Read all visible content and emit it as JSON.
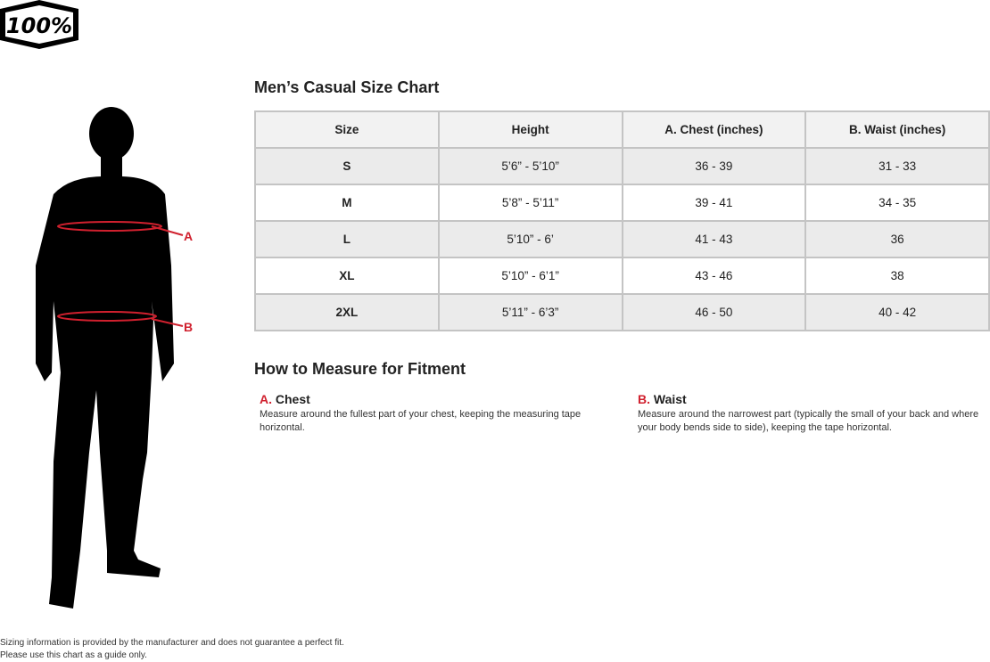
{
  "brand": {
    "logo_text": "100%"
  },
  "size_chart": {
    "title": "Men’s Casual Size Chart",
    "headers": [
      "Size",
      "Height",
      "A. Chest (inches)",
      "B. Waist (inches)"
    ],
    "rows": [
      [
        "S",
        "5’6” - 5’10”",
        "36 - 39",
        "31 - 33"
      ],
      [
        "M",
        "5’8” - 5’11”",
        "39 - 41",
        "34 - 35"
      ],
      [
        "L",
        "5’10” - 6’",
        "41 - 43",
        "36"
      ],
      [
        "XL",
        "5’10” - 6’1”",
        "43 - 46",
        "38"
      ],
      [
        "2XL",
        "5’11” - 6’3”",
        "46 - 50",
        "40 - 42"
      ]
    ]
  },
  "figure": {
    "label_a": "A",
    "label_b": "B",
    "accent": "#d0202e"
  },
  "how_to": {
    "title": "How to Measure for Fitment",
    "chest": {
      "letter": "A.",
      "name": "Chest",
      "text": "Measure around the fullest part of your chest, keeping the measuring tape horizontal."
    },
    "waist": {
      "letter": "B.",
      "name": "Waist",
      "text": "Measure around the narrowest part (typically the small of your back and where your body bends side to side), keeping the tape horizontal."
    }
  },
  "footer": {
    "line1": "Sizing information is provided by the manufacturer and does not guarantee a perfect fit.",
    "line2": "Please use this chart as a guide only."
  }
}
